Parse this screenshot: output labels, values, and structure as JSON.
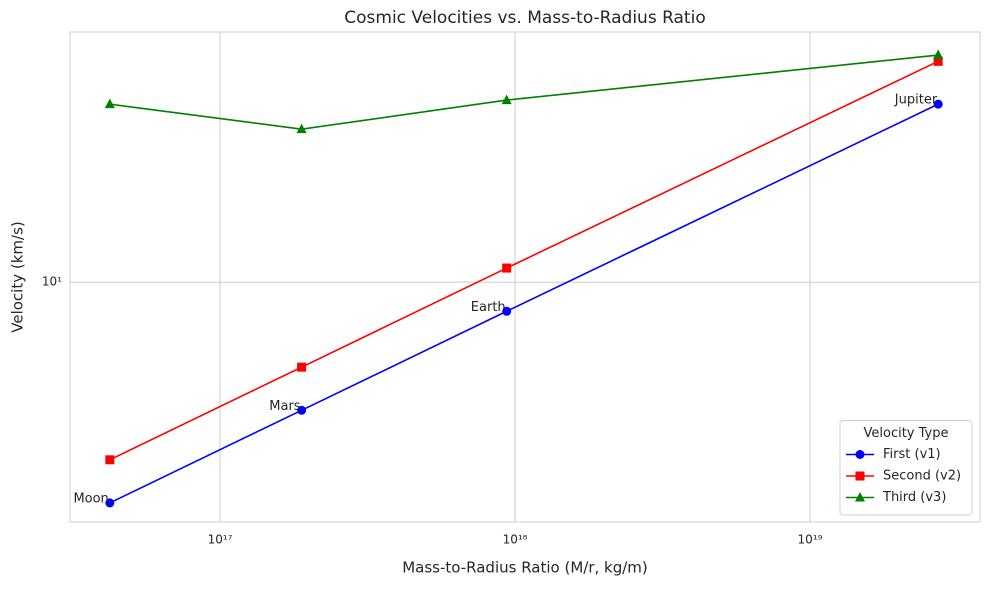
{
  "chart_data": {
    "type": "line",
    "title": "Cosmic Velocities vs. Mass-to-Radius Ratio",
    "xlabel": "Mass-to-Radius Ratio (M/r, kg/m)",
    "ylabel": "Velocity (km/s)",
    "x": [
      4.23e+16,
      1.89e+17,
      9.37e+17,
      2.72e+19
    ],
    "point_labels": [
      "Moon",
      "Mars",
      "Earth",
      "Jupiter"
    ],
    "xscale": "log",
    "yscale": "log",
    "xlim": [
      3.1e+16,
      3.77e+19
    ],
    "ylim": [
      1.44,
      75.4
    ],
    "xticks": [
      {
        "value": 1e+17,
        "label": "10¹⁷"
      },
      {
        "value": 1e+18,
        "label": "10¹⁸"
      },
      {
        "value": 1e+19,
        "label": "10¹⁹"
      }
    ],
    "yticks": [
      {
        "value": 10,
        "label": "10¹"
      }
    ],
    "grid": true,
    "legend_title": "Velocity Type",
    "legend_loc": "lower right",
    "series": [
      {
        "name": "First (v1)",
        "color": "#0000ff",
        "marker": "circle",
        "values": [
          1.68,
          3.55,
          7.9,
          42.1
        ]
      },
      {
        "name": "Second (v2)",
        "color": "#ff0000",
        "marker": "square",
        "values": [
          2.38,
          5.03,
          11.2,
          59.5
        ]
      },
      {
        "name": "Third (v3)",
        "color": "#008000",
        "marker": "triangle",
        "values": [
          42.1,
          34.4,
          43.5,
          62.6
        ]
      }
    ]
  }
}
